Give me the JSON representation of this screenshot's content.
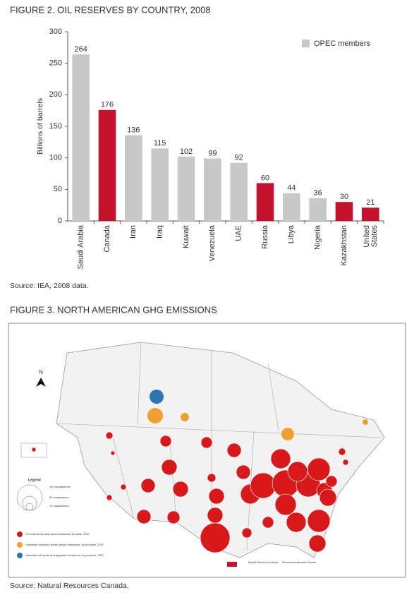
{
  "chart_data": {
    "type": "bar",
    "title": "FIGURE 2. OIL RESERVES BY COUNTRY, 2008",
    "y_label": "Billions of barrels",
    "categories": [
      "Saudi Arabia",
      "Canada",
      "Iran",
      "Iraq",
      "Kuwait",
      "Venezuela",
      "UAE",
      "Russia",
      "Libya",
      "Nigeria",
      "Kazakhstan",
      "United States"
    ],
    "values": [
      264,
      176,
      136,
      115,
      102,
      99,
      92,
      60,
      44,
      36,
      30,
      21
    ],
    "colors": [
      "#c8c8c8",
      "#c4122f",
      "#c8c8c8",
      "#c8c8c8",
      "#c8c8c8",
      "#c8c8c8",
      "#c8c8c8",
      "#c4122f",
      "#c8c8c8",
      "#c8c8c8",
      "#c4122f",
      "#c4122f"
    ],
    "legend": {
      "label": "OPEC members",
      "color": "#c8c8c8",
      "position": "top-right"
    },
    "ylim": [
      0,
      300
    ],
    "yticks": [
      0,
      50,
      100,
      150,
      200,
      250,
      300
    ],
    "grid": false
  },
  "figure2": {
    "source": "Source: IEA, 2008 data."
  },
  "figure3": {
    "title": "FIGURE 3. NORTH AMERICAN GHG EMISSIONS",
    "north_label": "N",
    "legend": {
      "title": "Legend",
      "sizes": [
        "150 megatonnes",
        "50 megatonnes",
        "10 megatonnes"
      ],
      "items": [
        "US coal-fired power plant emissions, by state, 2007",
        "Canadian coal-fired power plants emissions, by province, 2007",
        "Canadian oil sands and upgrader emissions, by province, 2007"
      ]
    },
    "credit": [
      "Natural Resources Canada",
      "Ressources naturelles Canada"
    ],
    "source": "Source: Natural Resources Canada."
  }
}
